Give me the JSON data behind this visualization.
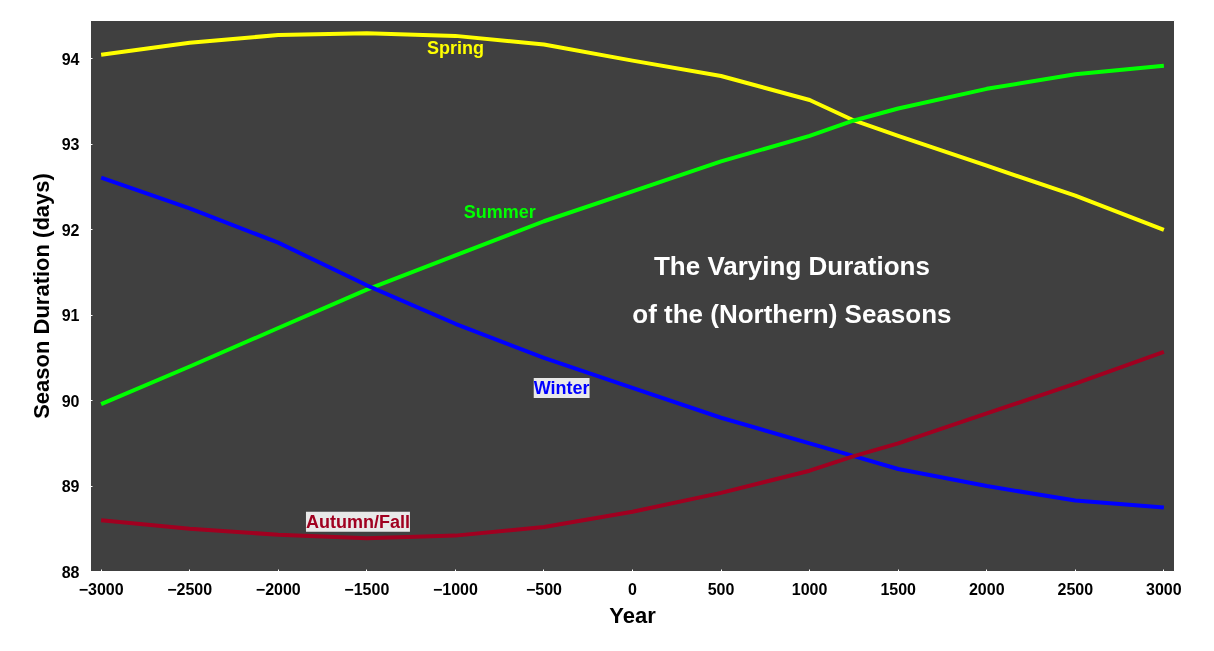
{
  "chart_data": {
    "type": "line",
    "title": "The Varying Durations\nof the (Northern) Seasons",
    "xlabel": "Year",
    "ylabel": "Season Duration (days)",
    "x": [
      -3000,
      -2500,
      -2000,
      -1500,
      -1000,
      -500,
      0,
      500,
      1000,
      1250,
      1500,
      2000,
      2500,
      3000
    ],
    "series": [
      {
        "name": "Spring",
        "color": "#ffff00",
        "values": [
          94.05,
          94.19,
          94.28,
          94.3,
          94.27,
          94.17,
          93.98,
          93.8,
          93.52,
          93.28,
          93.1,
          92.75,
          92.4,
          92.0
        ]
      },
      {
        "name": "Summer",
        "color": "#00ff00",
        "values": [
          89.96,
          90.4,
          90.85,
          91.3,
          91.7,
          92.1,
          92.45,
          92.8,
          93.1,
          93.28,
          93.42,
          93.65,
          93.82,
          93.92
        ]
      },
      {
        "name": "Winter",
        "color": "#0000ff",
        "values": [
          92.61,
          92.25,
          91.85,
          91.35,
          90.9,
          90.5,
          90.15,
          89.8,
          89.5,
          89.35,
          89.2,
          89.0,
          88.83,
          88.75
        ]
      },
      {
        "name": "Autumn/Fall",
        "color": "#a00020",
        "values": [
          88.6,
          88.5,
          88.43,
          88.39,
          88.42,
          88.52,
          88.7,
          88.92,
          89.18,
          89.35,
          89.5,
          89.85,
          90.2,
          90.57
        ]
      }
    ],
    "xlim": [
      -3060,
      3060
    ],
    "ylim": [
      88,
      94.45
    ],
    "xticks": [
      -3000,
      -2500,
      -2000,
      -1500,
      -1000,
      -500,
      0,
      500,
      1000,
      1500,
      2000,
      2500,
      3000
    ],
    "yticks": [
      88,
      89,
      90,
      91,
      92,
      93,
      94
    ],
    "grid": false,
    "marker": "none",
    "line_style": "solid"
  }
}
